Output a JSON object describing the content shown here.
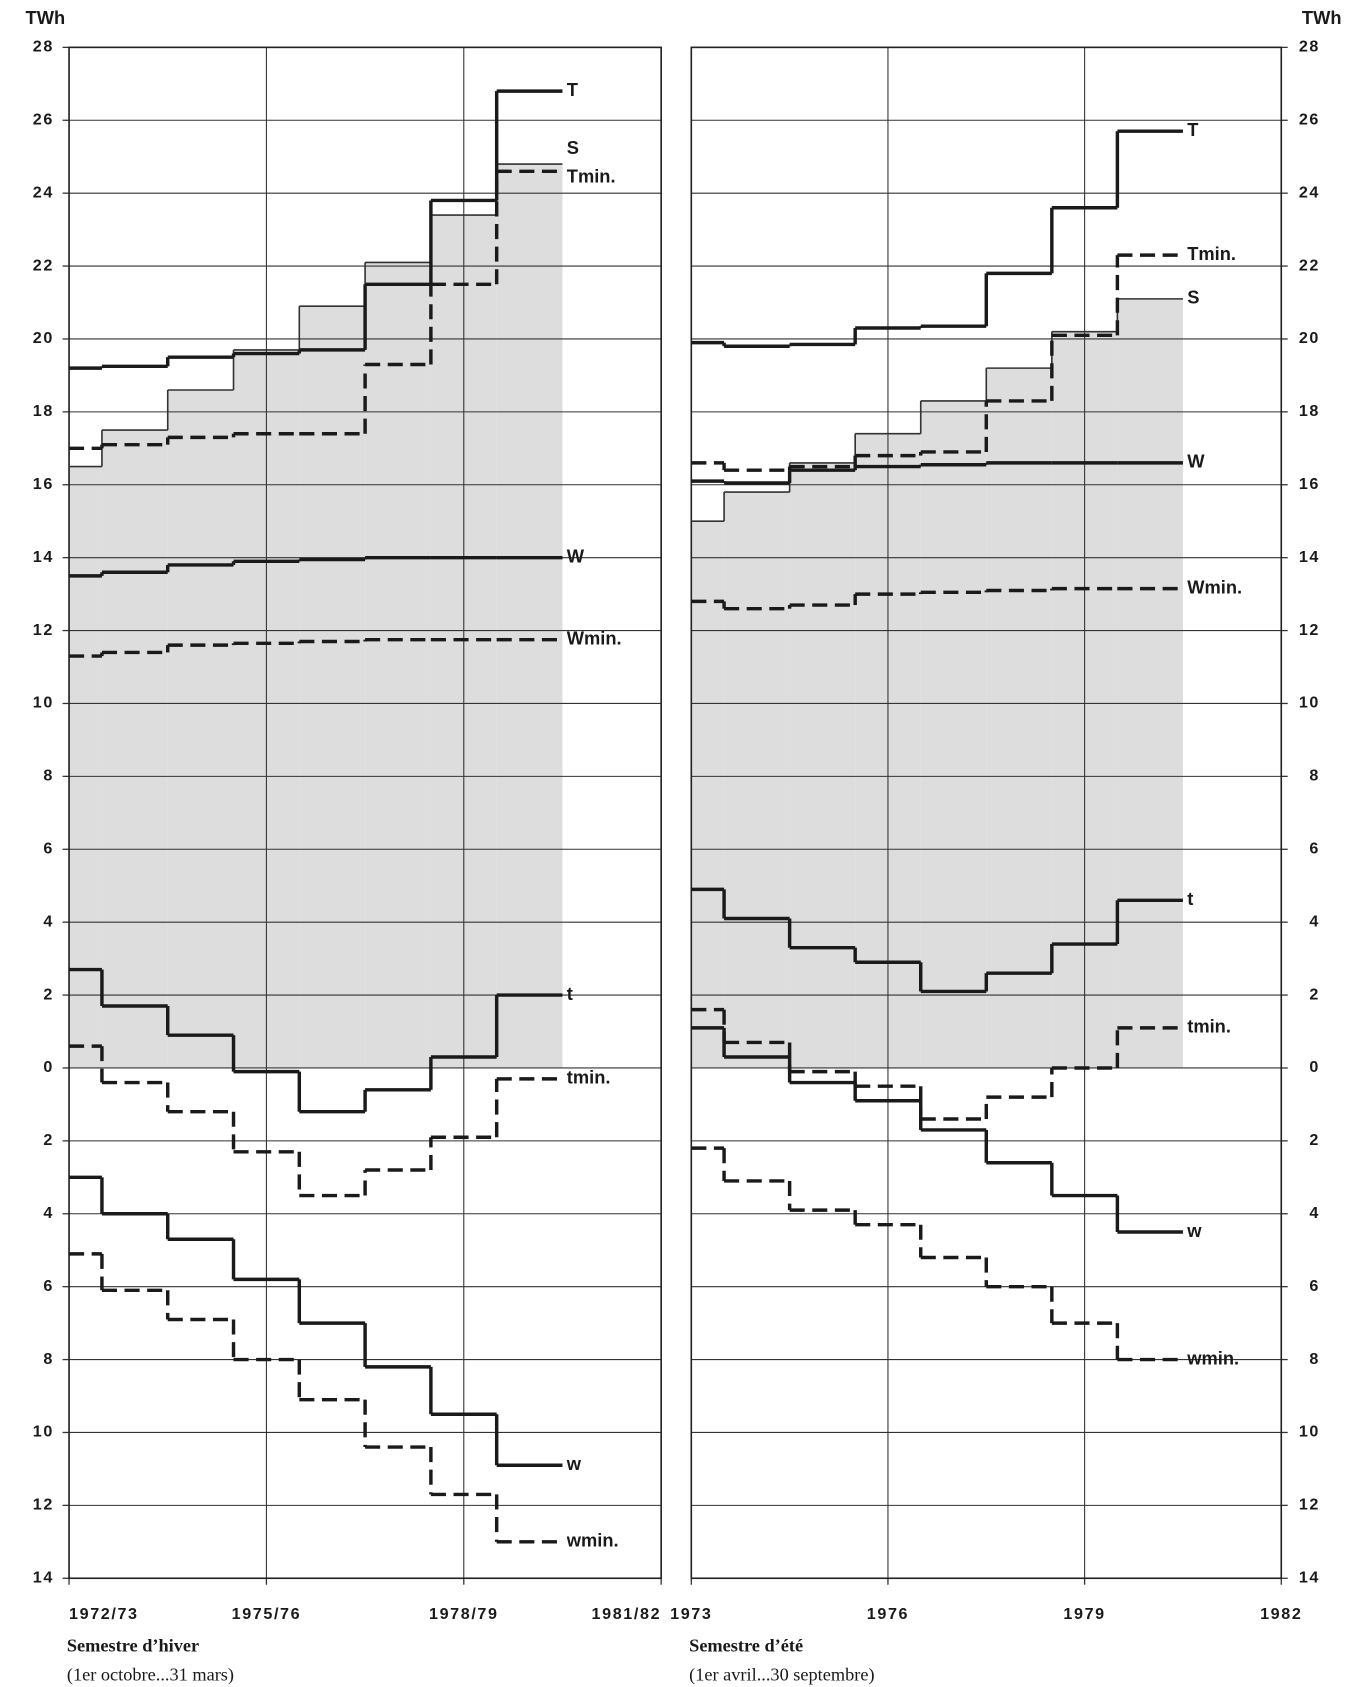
{
  "chart_data": [
    {
      "type": "step",
      "title": "Semestre d’hiver",
      "subtitle": "(1er octobre...31 mars)",
      "ylabel": "TWh",
      "yaxis_side": "left",
      "grid": true,
      "xlim": [
        1972,
        1981
      ],
      "xticks": [
        {
          "value": 1972,
          "label": "1972/73"
        },
        {
          "value": 1975,
          "label": "1975/76"
        },
        {
          "value": 1978,
          "label": "1978/79"
        },
        {
          "value": 1981,
          "label": "1981/82"
        }
      ],
      "ylim": [
        -14,
        28
      ],
      "yticks": [
        28,
        26,
        24,
        22,
        20,
        18,
        16,
        14,
        12,
        10,
        8,
        6,
        4,
        2,
        0,
        {
          "value": -2,
          "label": "2"
        },
        {
          "value": -4,
          "label": "4"
        },
        {
          "value": -6,
          "label": "6"
        },
        {
          "value": -8,
          "label": "8"
        },
        {
          "value": -10,
          "label": "10"
        },
        {
          "value": -12,
          "label": "12"
        },
        {
          "value": -14,
          "label": "14"
        }
      ],
      "x": [
        1972,
        1973,
        1974,
        1975,
        1976,
        1977,
        1978,
        1979
      ],
      "series": [
        {
          "name": "S",
          "color": "#d4d4d4",
          "style": "area",
          "values": [
            16.5,
            17.5,
            18.6,
            19.7,
            20.9,
            22.1,
            23.4,
            24.8
          ]
        },
        {
          "name": "T",
          "color": "#1a1a1a",
          "style": "solid",
          "values": [
            19.2,
            19.25,
            19.5,
            19.6,
            19.7,
            21.5,
            23.8,
            26.8
          ]
        },
        {
          "name": "Tmin.",
          "color": "#1a1a1a",
          "style": "dashed",
          "values": [
            17.0,
            17.1,
            17.3,
            17.4,
            17.4,
            19.3,
            21.5,
            24.6
          ]
        },
        {
          "name": "W",
          "color": "#1a1a1a",
          "style": "solid",
          "values": [
            13.5,
            13.6,
            13.8,
            13.9,
            13.95,
            14.0,
            14.0,
            14.0
          ]
        },
        {
          "name": "Wmin.",
          "color": "#1a1a1a",
          "style": "dashed",
          "values": [
            11.3,
            11.4,
            11.6,
            11.65,
            11.7,
            11.75,
            11.75,
            11.75
          ]
        },
        {
          "name": "t",
          "color": "#1a1a1a",
          "style": "solid",
          "values": [
            2.7,
            1.7,
            0.9,
            -0.1,
            -1.2,
            -0.6,
            0.3,
            2.0
          ]
        },
        {
          "name": "tmin.",
          "color": "#1a1a1a",
          "style": "dashed",
          "values": [
            0.6,
            -0.4,
            -1.2,
            -2.3,
            -3.5,
            -2.8,
            -1.9,
            -0.3
          ]
        },
        {
          "name": "w",
          "color": "#1a1a1a",
          "style": "solid",
          "values": [
            -3.0,
            -4.0,
            -4.7,
            -5.8,
            -7.0,
            -8.2,
            -9.5,
            -10.9
          ]
        },
        {
          "name": "wmin.",
          "color": "#1a1a1a",
          "style": "dashed",
          "values": [
            -5.1,
            -6.1,
            -6.9,
            -8.0,
            -9.1,
            -10.4,
            -11.7,
            -13.0
          ]
        }
      ]
    },
    {
      "type": "step",
      "title": "Semestre d’été",
      "subtitle": "(1er avril...30 septembre)",
      "ylabel": "TWh",
      "yaxis_side": "right",
      "grid": true,
      "xlim": [
        1973,
        1982
      ],
      "xticks": [
        1973,
        1976,
        1979,
        1982
      ],
      "ylim": [
        -14,
        28
      ],
      "yticks": [
        28,
        26,
        24,
        22,
        20,
        18,
        16,
        14,
        12,
        10,
        8,
        6,
        4,
        2,
        0,
        {
          "value": -2,
          "label": "2"
        },
        {
          "value": -4,
          "label": "4"
        },
        {
          "value": -6,
          "label": "6"
        },
        {
          "value": -8,
          "label": "8"
        },
        {
          "value": -10,
          "label": "10"
        },
        {
          "value": -12,
          "label": "12"
        },
        {
          "value": -14,
          "label": "14"
        }
      ],
      "x": [
        1973,
        1974,
        1975,
        1976,
        1977,
        1978,
        1979,
        1980
      ],
      "series": [
        {
          "name": "S",
          "color": "#d4d4d4",
          "style": "area",
          "values": [
            15.0,
            15.8,
            16.6,
            17.4,
            18.3,
            19.2,
            20.2,
            21.1
          ]
        },
        {
          "name": "T",
          "color": "#1a1a1a",
          "style": "solid",
          "values": [
            19.9,
            19.8,
            19.85,
            20.3,
            20.35,
            21.8,
            23.6,
            25.7
          ]
        },
        {
          "name": "Tmin.",
          "color": "#1a1a1a",
          "style": "dashed",
          "values": [
            16.6,
            16.4,
            16.5,
            16.8,
            16.9,
            18.3,
            20.1,
            22.3
          ]
        },
        {
          "name": "W",
          "color": "#1a1a1a",
          "style": "solid",
          "values": [
            16.1,
            16.05,
            16.4,
            16.5,
            16.55,
            16.6,
            16.6,
            16.6
          ]
        },
        {
          "name": "Wmin.",
          "color": "#1a1a1a",
          "style": "dashed",
          "values": [
            12.8,
            12.6,
            12.7,
            13.0,
            13.05,
            13.1,
            13.15,
            13.15
          ]
        },
        {
          "name": "t",
          "color": "#1a1a1a",
          "style": "solid",
          "values": [
            4.9,
            4.1,
            3.3,
            2.9,
            2.1,
            2.6,
            3.4,
            4.6
          ]
        },
        {
          "name": "tmin.",
          "color": "#1a1a1a",
          "style": "dashed",
          "values": [
            1.6,
            0.7,
            -0.1,
            -0.5,
            -1.4,
            -0.8,
            0.0,
            1.1
          ]
        },
        {
          "name": "w",
          "color": "#1a1a1a",
          "style": "solid",
          "values": [
            1.1,
            0.3,
            -0.4,
            -0.9,
            -1.7,
            -2.6,
            -3.5,
            -4.5
          ]
        },
        {
          "name": "wmin.",
          "color": "#1a1a1a",
          "style": "dashed",
          "values": [
            -2.2,
            -3.1,
            -3.9,
            -4.3,
            -5.2,
            -6.0,
            -7.0,
            -8.0
          ]
        }
      ]
    }
  ]
}
